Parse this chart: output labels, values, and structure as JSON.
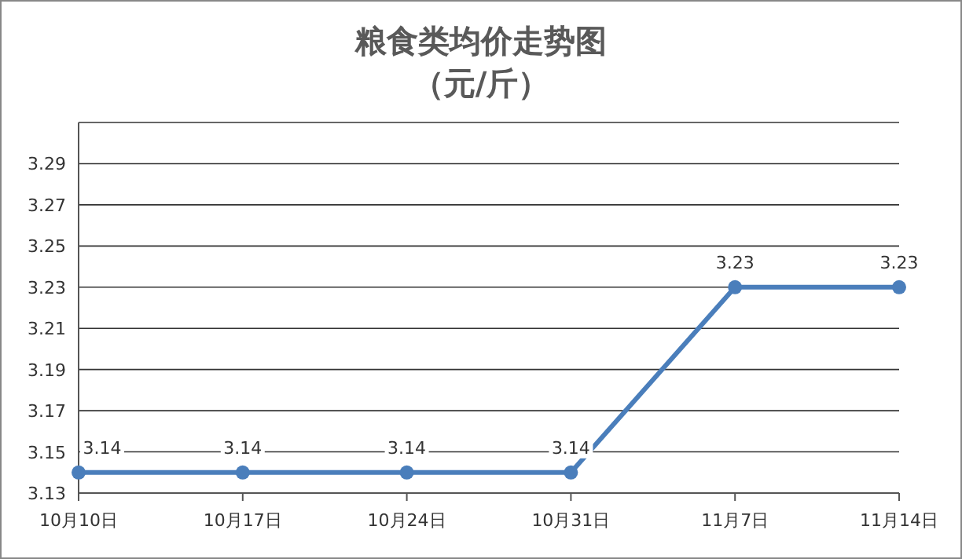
{
  "chart_data": {
    "type": "line",
    "title": "粮食类均价走势图",
    "subtitle": "（元/斤）",
    "categories": [
      "10月10日",
      "10月17日",
      "10月24日",
      "10月31日",
      "11月7日",
      "11月14日"
    ],
    "series": [
      {
        "color": "#4a7ebb",
        "values": [
          3.14,
          3.14,
          3.14,
          3.14,
          3.23,
          3.23
        ]
      }
    ],
    "ylim": [
      3.13,
      3.31
    ],
    "yticks": [
      3.13,
      3.15,
      3.17,
      3.19,
      3.21,
      3.23,
      3.25,
      3.27,
      3.29,
      {
        "value": 3.31,
        "label": null
      }
    ],
    "grid": "y",
    "marker": "circle",
    "line_style": "solid",
    "data_labels": true
  }
}
